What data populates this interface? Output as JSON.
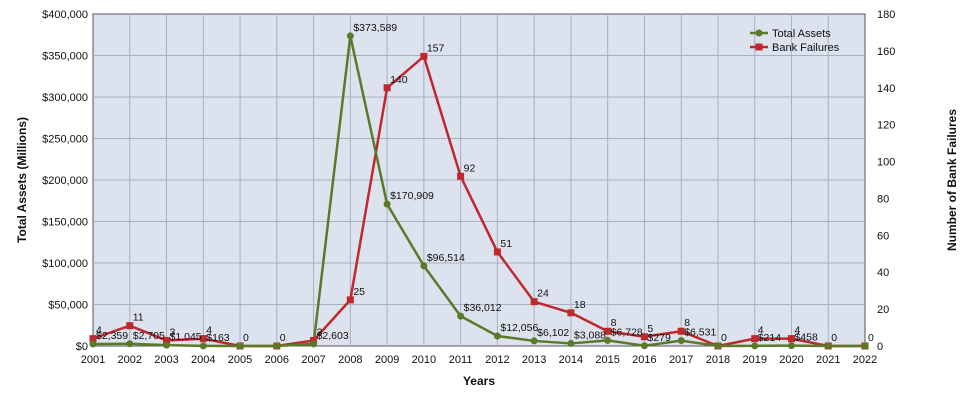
{
  "chart_data": {
    "type": "line",
    "categories": [
      "2001",
      "2002",
      "2003",
      "2004",
      "2005",
      "2006",
      "2007",
      "2008",
      "2009",
      "2010",
      "2011",
      "2012",
      "2013",
      "2014",
      "2015",
      "2016",
      "2017",
      "2018",
      "2019",
      "2020",
      "2021",
      "2022"
    ],
    "series": [
      {
        "name": "Total Assets",
        "axis": "left",
        "color": "#5a7a2a",
        "marker": "circle",
        "values": [
          2359,
          2705,
          1045,
          163,
          0,
          0,
          2603,
          373589,
          170909,
          96514,
          36012,
          12056,
          6102,
          3088,
          6728,
          279,
          6531,
          0,
          214,
          458,
          0,
          0
        ],
        "labels": [
          "$2,359",
          "$2,705",
          "$1,045",
          "$163",
          "",
          "",
          "$2,603",
          "$373,589",
          "$170,909",
          "$96,514",
          "$36,012",
          "$12,056",
          "$6,102",
          "$3,088",
          "$6,728",
          "$279",
          "$6,531",
          "",
          "$214",
          "$458",
          "",
          ""
        ]
      },
      {
        "name": "Bank Failures",
        "axis": "right",
        "color": "#c0282d",
        "marker": "square",
        "values": [
          4,
          11,
          3,
          4,
          0,
          0,
          3,
          25,
          140,
          157,
          92,
          51,
          24,
          18,
          8,
          5,
          8,
          0,
          4,
          4,
          0,
          0
        ],
        "labels": [
          "4",
          "11",
          "3",
          "4",
          "0",
          "0",
          "3",
          "25",
          "140",
          "157",
          "92",
          "51",
          "24",
          "18",
          "8",
          "5",
          "8",
          "0",
          "4",
          "4",
          "0",
          "0"
        ]
      }
    ],
    "xlabel": "Years",
    "ylabel_left": "Total Assets (Millions)",
    "ylabel_right": "Number of Bank Failures",
    "ylim_left": [
      0,
      400000
    ],
    "ylim_right": [
      0,
      180
    ],
    "yticks_left": [
      "$0",
      "$50,000",
      "$100,000",
      "$150,000",
      "$200,000",
      "$250,000",
      "$300,000",
      "$350,000",
      "$400,000"
    ],
    "yticks_right": [
      "0",
      "20",
      "40",
      "60",
      "80",
      "100",
      "120",
      "140",
      "160",
      "180"
    ],
    "grid": true,
    "legend_position": "top-right",
    "plot_background": "#dce3ee"
  }
}
